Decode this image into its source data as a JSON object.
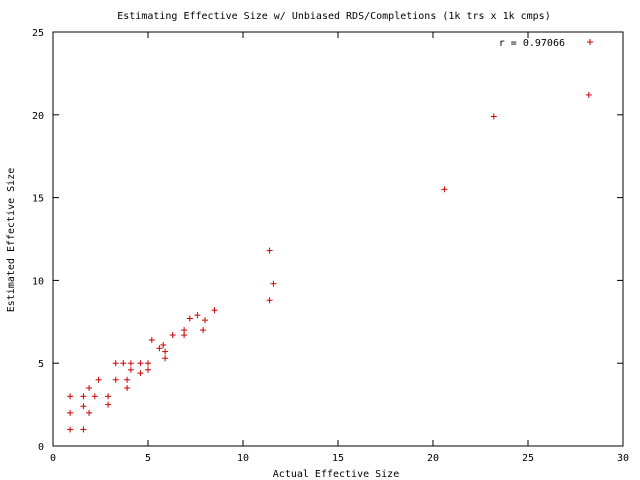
{
  "chart_data": {
    "type": "scatter",
    "title": "Estimating Effective Size w/ Unbiased RDS/Completions (1k trs x 1k cmps)",
    "xlabel": "Actual Effective Size",
    "ylabel": "Estimated Effective Size",
    "xlim": [
      0,
      30
    ],
    "ylim": [
      0,
      25
    ],
    "xticks": [
      "0",
      "5",
      "10",
      "15",
      "20",
      "25",
      "30"
    ],
    "yticks": [
      "0",
      "5",
      "10",
      "15",
      "20",
      "25"
    ],
    "grid": false,
    "legend_position": "top-right",
    "marker": "+",
    "series": [
      {
        "name": "r = 0.97066",
        "color": "#cc0000",
        "points": [
          [
            0.9,
            3.0
          ],
          [
            0.9,
            2.0
          ],
          [
            0.9,
            1.0
          ],
          [
            1.6,
            3.0
          ],
          [
            1.6,
            2.4
          ],
          [
            1.6,
            1.0
          ],
          [
            1.9,
            3.5
          ],
          [
            1.9,
            2.0
          ],
          [
            2.2,
            3.0
          ],
          [
            2.4,
            4.0
          ],
          [
            2.9,
            3.0
          ],
          [
            2.9,
            2.5
          ],
          [
            3.3,
            5.0
          ],
          [
            3.3,
            4.0
          ],
          [
            3.7,
            5.0
          ],
          [
            3.9,
            4.0
          ],
          [
            3.9,
            3.5
          ],
          [
            4.1,
            5.0
          ],
          [
            4.1,
            4.6
          ],
          [
            4.6,
            5.0
          ],
          [
            4.6,
            4.4
          ],
          [
            5.0,
            5.0
          ],
          [
            5.0,
            4.6
          ],
          [
            5.2,
            6.4
          ],
          [
            5.6,
            5.9
          ],
          [
            5.8,
            6.1
          ],
          [
            5.9,
            5.7
          ],
          [
            5.9,
            5.3
          ],
          [
            6.3,
            6.7
          ],
          [
            6.9,
            7.0
          ],
          [
            6.9,
            6.7
          ],
          [
            7.2,
            7.7
          ],
          [
            7.6,
            7.9
          ],
          [
            8.0,
            7.6
          ],
          [
            7.9,
            7.0
          ],
          [
            8.5,
            8.2
          ],
          [
            11.4,
            11.8
          ],
          [
            11.6,
            9.8
          ],
          [
            11.4,
            8.8
          ],
          [
            20.6,
            15.5
          ],
          [
            23.2,
            19.9
          ],
          [
            28.2,
            21.2
          ]
        ]
      }
    ]
  }
}
